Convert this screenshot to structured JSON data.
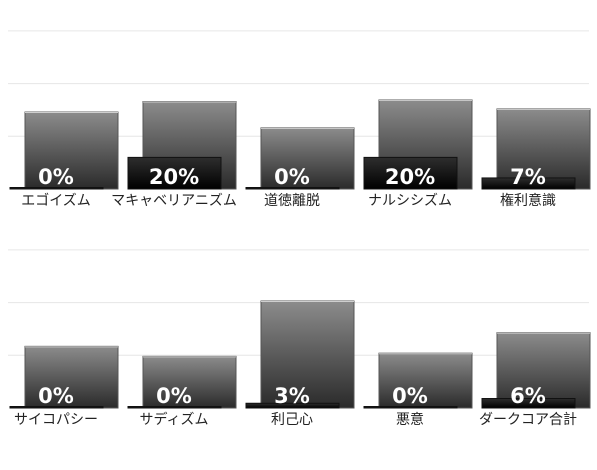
{
  "chart_data": [
    {
      "type": "bar",
      "categories": [
        "エゴイズム",
        "マキャベリアニズム",
        "道徳離脱",
        "ナルシシズム",
        "権利意識"
      ],
      "series": [
        {
          "values": [
            1.46,
            1.66,
            1.16,
            1.69,
            1.52
          ]
        },
        {
          "values": [
            0.0,
            0.6,
            0.0,
            0.6,
            0.21
          ]
        }
      ],
      "data_labels": [
        "0%",
        "20%",
        "0%",
        "20%",
        "7%"
      ],
      "ylim": [
        0,
        3.0
      ],
      "grid": true
    },
    {
      "type": "bar",
      "categories": [
        "サイコパシー",
        "サディズム",
        "利己心",
        "悪意",
        "ダークコア合計"
      ],
      "series": [
        {
          "values": [
            1.17,
            0.98,
            2.03,
            1.04,
            1.43
          ]
        },
        {
          "values": [
            0.0,
            0.0,
            0.09,
            0.0,
            0.18
          ]
        }
      ],
      "data_labels": [
        "0%",
        "0%",
        "3%",
        "0%",
        "6%"
      ],
      "ylim": [
        0,
        3.0
      ],
      "grid": true
    }
  ],
  "colors": {
    "back_bar_top": "#8c8c8c",
    "back_bar_bottom": "#2a2a2a",
    "front_bar_top": "#2e2e2e",
    "front_bar_bottom": "#000000",
    "gridline": "#e6e6e6",
    "label_text": "#222222"
  }
}
